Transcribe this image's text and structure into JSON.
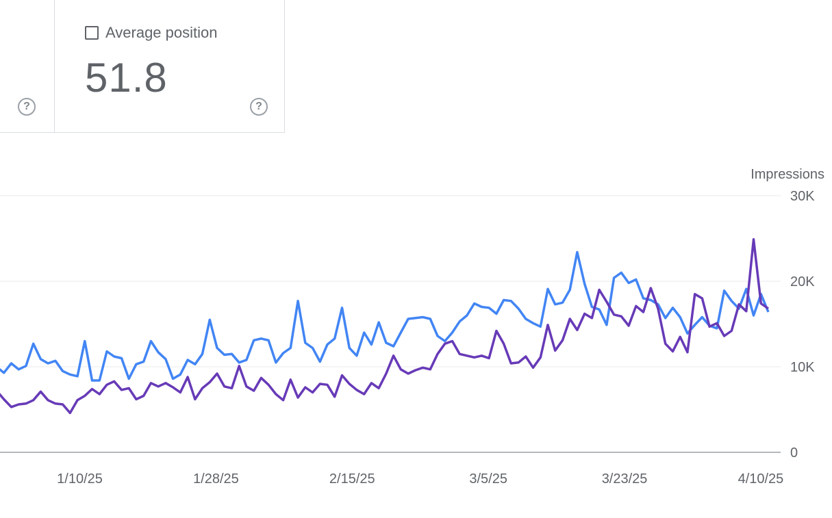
{
  "cards": {
    "left": {
      "help_icon": "?"
    },
    "avg_position": {
      "label": "Average position",
      "value": "51.8",
      "help_icon": "?"
    }
  },
  "colors": {
    "impressions": "#4285f4",
    "clicks": "#673ab7",
    "grid": "#e8eaed",
    "axis": "#9aa0a6"
  },
  "chart_data": {
    "type": "line",
    "ylabel_right": "Impressions",
    "y_ticks": [
      "0",
      "10K",
      "20K",
      "30K"
    ],
    "ylim": [
      0,
      30000
    ],
    "x_tick_labels": [
      "1/10/25",
      "1/28/25",
      "2/15/25",
      "3/5/25",
      "3/23/25",
      "4/10/25"
    ],
    "x_range": [
      "2024-12-30",
      "2025-04-11"
    ],
    "series": [
      {
        "color": "#4285f4",
        "values": [
          10000,
          9300,
          10400,
          9700,
          10100,
          12700,
          10900,
          10400,
          10700,
          9500,
          9100,
          8900,
          13000,
          8400,
          8400,
          11800,
          11200,
          11000,
          8600,
          10300,
          10600,
          13000,
          11700,
          10900,
          8600,
          9100,
          10800,
          10300,
          11500,
          15500,
          12200,
          11400,
          11500,
          10500,
          10800,
          13100,
          13300,
          13100,
          10500,
          11600,
          12200,
          17700,
          12800,
          12200,
          10600,
          12600,
          13300,
          16900,
          12200,
          11300,
          14000,
          12600,
          15200,
          12800,
          12400,
          14000,
          15600,
          15700,
          15800,
          15600,
          13600,
          13000,
          14000,
          15300,
          16000,
          17400,
          17000,
          16900,
          16200,
          17800,
          17700,
          16800,
          15600,
          15100,
          14700,
          19100,
          17300,
          17500,
          19000,
          23400,
          19700,
          17000,
          16700,
          14900,
          20400,
          21000,
          19800,
          20200,
          18000,
          17800,
          17300,
          15700,
          16900,
          15800,
          13900,
          14900,
          15800,
          14800,
          14500,
          18900,
          17700,
          16800,
          19100,
          16000,
          18500,
          16400
        ]
      },
      {
        "color": "#673ab7",
        "values": [
          7200,
          6200,
          5300,
          5600,
          5700,
          6100,
          7100,
          6100,
          5700,
          5600,
          4600,
          6100,
          6600,
          7400,
          6800,
          7900,
          8300,
          7300,
          7500,
          6200,
          6600,
          8100,
          7700,
          8100,
          7600,
          7000,
          8800,
          6200,
          7500,
          8200,
          9200,
          7700,
          7500,
          10100,
          7700,
          7200,
          8700,
          7900,
          6800,
          6100,
          8500,
          6400,
          7600,
          7000,
          8000,
          7900,
          6500,
          9000,
          8000,
          7300,
          6800,
          8100,
          7500,
          9200,
          11300,
          9700,
          9200,
          9600,
          9900,
          9700,
          11500,
          12700,
          13000,
          11500,
          11300,
          11100,
          11300,
          11000,
          14200,
          12700,
          10400,
          10500,
          11200,
          9900,
          11100,
          14900,
          11900,
          13100,
          15600,
          14300,
          16200,
          15700,
          19000,
          17600,
          16100,
          15900,
          14800,
          17100,
          16400,
          19200,
          16800,
          12700,
          11800,
          13500,
          11700,
          18500,
          18000,
          14700,
          15100,
          13600,
          14200,
          17300,
          16500,
          24900,
          17400,
          16800
        ]
      }
    ]
  }
}
